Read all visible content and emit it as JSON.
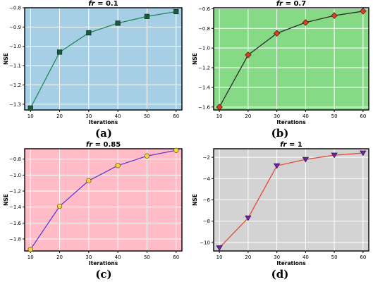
{
  "figure": {
    "captions": [
      "(a)",
      "(b)",
      "(c)",
      "(d)"
    ]
  },
  "chart_data": [
    {
      "type": "line",
      "title": "fr = 0.1",
      "title_parts": {
        "italic": "fr",
        "rest": " = 0.1"
      },
      "xlabel": "Iterations",
      "ylabel": "NSE",
      "x": [
        10,
        20,
        30,
        40,
        50,
        60
      ],
      "series": [
        {
          "values": [
            -1.32,
            -1.03,
            -0.93,
            -0.88,
            -0.845,
            -0.82
          ]
        }
      ],
      "xlim": [
        8,
        62
      ],
      "ylim": [
        -1.33,
        -0.8
      ],
      "xticks": [
        "10",
        "20",
        "30",
        "40",
        "50",
        "60"
      ],
      "yticks": [
        -1.3,
        -1.2,
        -1.1,
        -1.0,
        -0.9,
        -0.8
      ],
      "ytick_labels": [
        "−1.3",
        "−1.2",
        "−1.1",
        "−1.0",
        "−0.9",
        "−0.8"
      ],
      "grid": true,
      "background": "#a6cfe6",
      "line_color": "#1e8a55",
      "marker": "square",
      "marker_fill": "#1e5a3e",
      "marker_edge": "#0e2f20"
    },
    {
      "type": "line",
      "title": "fr = 0.7",
      "title_parts": {
        "italic": "fr",
        "rest": " = 0.7"
      },
      "xlabel": "Iterations",
      "ylabel": "NSE",
      "x": [
        10,
        20,
        30,
        40,
        50,
        60
      ],
      "series": [
        {
          "values": [
            -1.6,
            -1.07,
            -0.85,
            -0.74,
            -0.67,
            -0.625
          ]
        }
      ],
      "xlim": [
        8,
        62
      ],
      "ylim": [
        -1.63,
        -0.59
      ],
      "xticks": [
        "10",
        "20",
        "30",
        "40",
        "50",
        "60"
      ],
      "yticks": [
        -1.6,
        -1.4,
        -1.2,
        -1.0,
        -0.8,
        -0.6
      ],
      "ytick_labels": [
        "−1.6",
        "−1.4",
        "−1.2",
        "−1.0",
        "−0.8",
        "−0.6"
      ],
      "grid": true,
      "background": "#86da86",
      "line_color": "#2b2b2b",
      "marker": "diamond",
      "marker_fill": "#d6402a",
      "marker_edge": "#6a1a10"
    },
    {
      "type": "line",
      "title": "fr = 0.85",
      "title_parts": {
        "italic": "fr",
        "rest": " = 0.85"
      },
      "xlabel": "Iterations",
      "ylabel": "NSE",
      "x": [
        10,
        20,
        30,
        40,
        50,
        60
      ],
      "series": [
        {
          "values": [
            -1.93,
            -1.39,
            -1.07,
            -0.88,
            -0.76,
            -0.69
          ]
        }
      ],
      "xlim": [
        8,
        62
      ],
      "ylim": [
        -1.95,
        -0.67
      ],
      "xticks": [
        "10",
        "20",
        "30",
        "40",
        "50",
        "60"
      ],
      "yticks": [
        -1.8,
        -1.6,
        -1.4,
        -1.2,
        -1.0,
        -0.8
      ],
      "ytick_labels": [
        "−1.8",
        "−1.6",
        "−1.4",
        "−1.2",
        "−1.0",
        "−0.8"
      ],
      "grid": true,
      "background": "#ffbcc6",
      "line_color": "#5a3ad6",
      "marker": "circle",
      "marker_fill": "#f5d54a",
      "marker_edge": "#7a6200"
    },
    {
      "type": "line",
      "title": "fr = 1",
      "title_parts": {
        "italic": "fr",
        "rest": " = 1"
      },
      "xlabel": "Iterations",
      "ylabel": "NSE",
      "x": [
        10,
        20,
        30,
        40,
        50,
        60
      ],
      "series": [
        {
          "values": [
            -10.5,
            -7.7,
            -2.8,
            -2.2,
            -1.8,
            -1.6
          ]
        }
      ],
      "xlim": [
        8,
        62
      ],
      "ylim": [
        -10.8,
        -1.2
      ],
      "xticks": [
        "10",
        "20",
        "30",
        "40",
        "50",
        "60"
      ],
      "yticks": [
        -10,
        -8,
        -6,
        -4,
        -2
      ],
      "ytick_labels": [
        "−10",
        "−8",
        "−6",
        "−4",
        "−2"
      ],
      "grid": true,
      "background": "#d3d3d3",
      "line_color": "#e8463c",
      "marker": "triangle-down",
      "marker_fill": "#6a2a9a",
      "marker_edge": "#3a1060"
    }
  ]
}
